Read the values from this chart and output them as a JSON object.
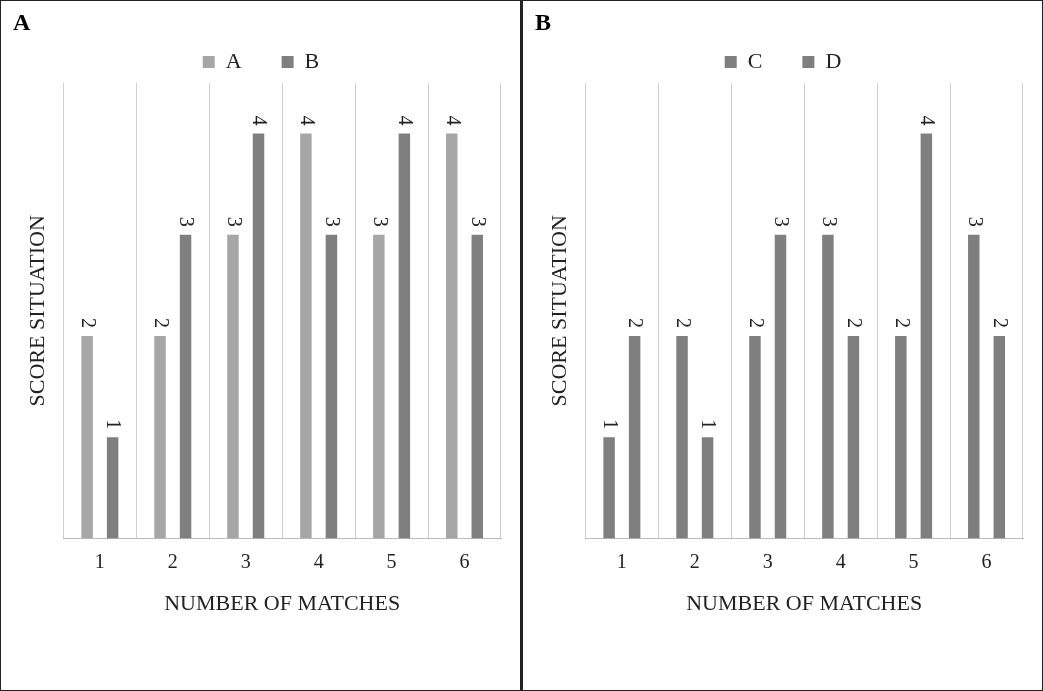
{
  "chart_data": [
    {
      "type": "bar",
      "annotations": [
        "A"
      ],
      "xlabel": "NUMBER OF MATCHES",
      "ylabel": "SCORE SITUATION",
      "categories": [
        "1",
        "2",
        "3",
        "4",
        "5",
        "6"
      ],
      "series": [
        {
          "name": "A",
          "color": "#a6a6a6",
          "values": [
            2,
            2,
            3,
            4,
            3,
            4
          ]
        },
        {
          "name": "B",
          "color": "#7f7f7f",
          "values": [
            1,
            3,
            4,
            3,
            4,
            3
          ]
        }
      ],
      "ylim": [
        0,
        4.5
      ],
      "tick_labels": "x",
      "grid": "x",
      "legend": "top",
      "data_labels": true
    },
    {
      "type": "bar",
      "annotations": [
        "B"
      ],
      "xlabel": "NUMBER OF MATCHES",
      "ylabel": "SCORE SITUATION",
      "categories": [
        "1",
        "2",
        "3",
        "4",
        "5",
        "6"
      ],
      "series": [
        {
          "name": "C",
          "color": "#7f7f7f",
          "values": [
            1,
            2,
            2,
            3,
            2,
            3
          ]
        },
        {
          "name": "D",
          "color": "#7f7f7f",
          "values": [
            2,
            1,
            3,
            2,
            4,
            2
          ]
        }
      ],
      "ylim": [
        0,
        4.5
      ],
      "tick_labels": "x",
      "grid": "x",
      "legend": "top",
      "data_labels": true
    }
  ]
}
